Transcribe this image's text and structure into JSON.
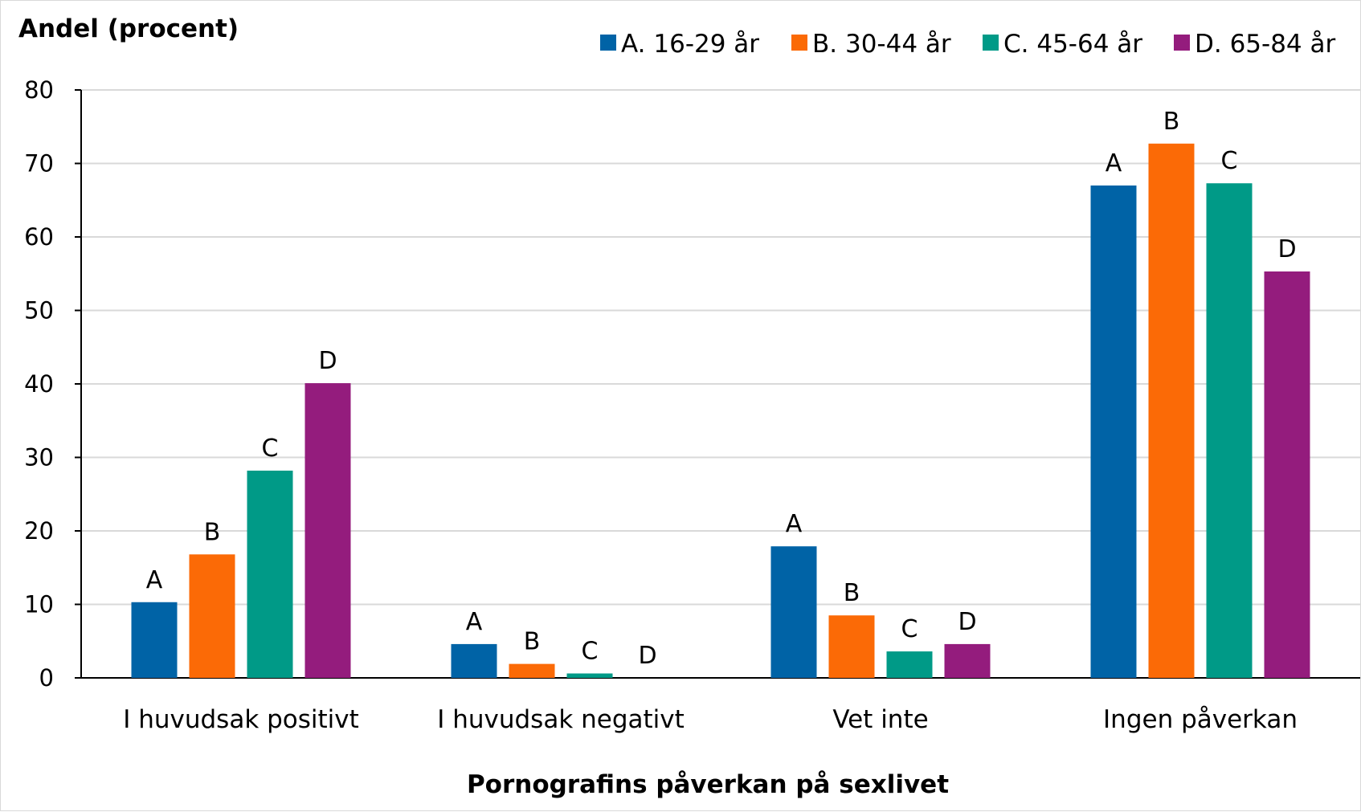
{
  "chart_data": {
    "type": "bar",
    "ylabel": "Andel (procent)",
    "xlabel": "Pornografins påverkan på sexlivet",
    "ylim": [
      0,
      80
    ],
    "yticks": [
      0,
      10,
      20,
      30,
      40,
      50,
      60,
      70,
      80
    ],
    "grid": true,
    "legend_position": "top-right",
    "categories": [
      "I huvudsak positivt",
      "I huvudsak negativt",
      "Vet inte",
      "Ingen påverkan"
    ],
    "series": [
      {
        "name": "A. 16-29 år",
        "label": "A",
        "color": "#0063a6",
        "values": [
          10.3,
          4.6,
          17.9,
          67.0
        ]
      },
      {
        "name": "B. 30-44 år",
        "label": "B",
        "color": "#fb6a06",
        "values": [
          16.8,
          1.9,
          8.5,
          72.7
        ]
      },
      {
        "name": "C. 45-64 år",
        "label": "C",
        "color": "#009a87",
        "values": [
          28.2,
          0.6,
          3.6,
          67.3
        ]
      },
      {
        "name": "D. 65-84 år",
        "label": "D",
        "color": "#941c7d",
        "values": [
          40.1,
          0.0,
          4.6,
          55.3
        ]
      }
    ]
  }
}
